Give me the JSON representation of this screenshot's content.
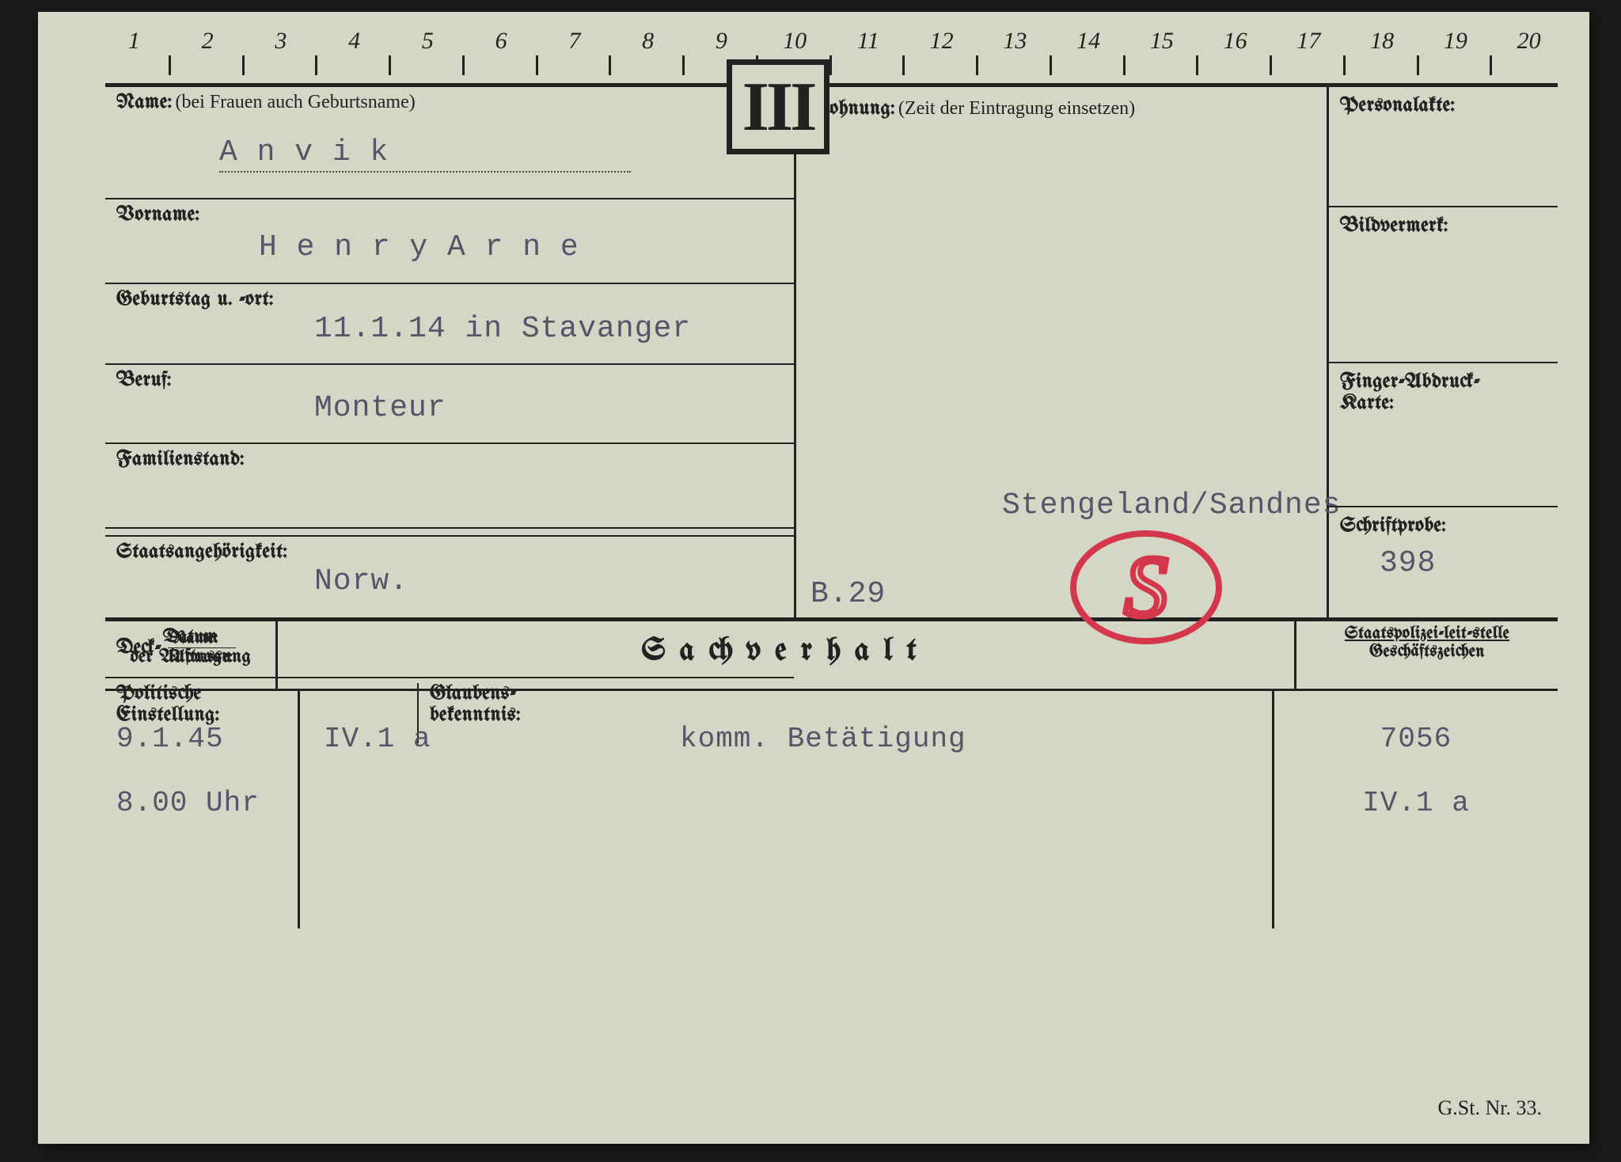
{
  "ruler": [
    "1",
    "2",
    "3",
    "4",
    "5",
    "6",
    "7",
    "8",
    "9",
    "10",
    "11",
    "12",
    "13",
    "14",
    "15",
    "16",
    "17",
    "18",
    "19",
    "20"
  ],
  "roman": "III",
  "labels": {
    "name": "Name:",
    "name_note": "(bei Frauen auch Geburtsname)",
    "vorname": "Vorname:",
    "geburtstag": "Geburtstag u. -ort:",
    "beruf": "Beruf:",
    "familienstand": "Familienstand:",
    "staats": "Staatsangehörigkeit:",
    "deck": "Deck-",
    "deck_name": "Name:",
    "deck_adresse": "Adresse:",
    "politische": "Politische",
    "einstellung": "Einstellung:",
    "glaubens": "Glaubens-",
    "bekenntnis": "bekenntnis:",
    "wohnung": "Wohnung:",
    "wohnung_note": "(Zeit der Eintragung einsetzen)",
    "personalakte": "Personalakte:",
    "bildvermerk": "Bildvermerk:",
    "finger": "Finger-Abdruck-",
    "karte": "Karte:",
    "schriftprobe": "Schriftprobe:",
    "datum1": "Datum",
    "datum2": "der Auftragung",
    "sachverhalt": "Sachverhalt",
    "spl1": "Staatspolizei-leit-stelle",
    "spl2": "Geschäftszeichen"
  },
  "values": {
    "name": "A n v i k",
    "vorname": "H e n r y   A r n e",
    "geburtstag": "11.1.14 in Stavanger",
    "beruf": "Monteur",
    "staats": "Norw.",
    "wohnung_place": "Stengeland/Sandnes",
    "b29": "B.29",
    "schrift_num": "398"
  },
  "entries": {
    "date1": "9.1.45",
    "date2": "8.00 Uhr",
    "col2a": "IV.1 a",
    "desc": "komm. Betätigung",
    "num": "7056",
    "ref": "IV.1 a"
  },
  "footer": "G.St. Nr. 33.",
  "colors": {
    "paper": "#d4d6c6",
    "ink": "#222222",
    "typed": "#5a5268",
    "stamp": "#d4374a"
  }
}
